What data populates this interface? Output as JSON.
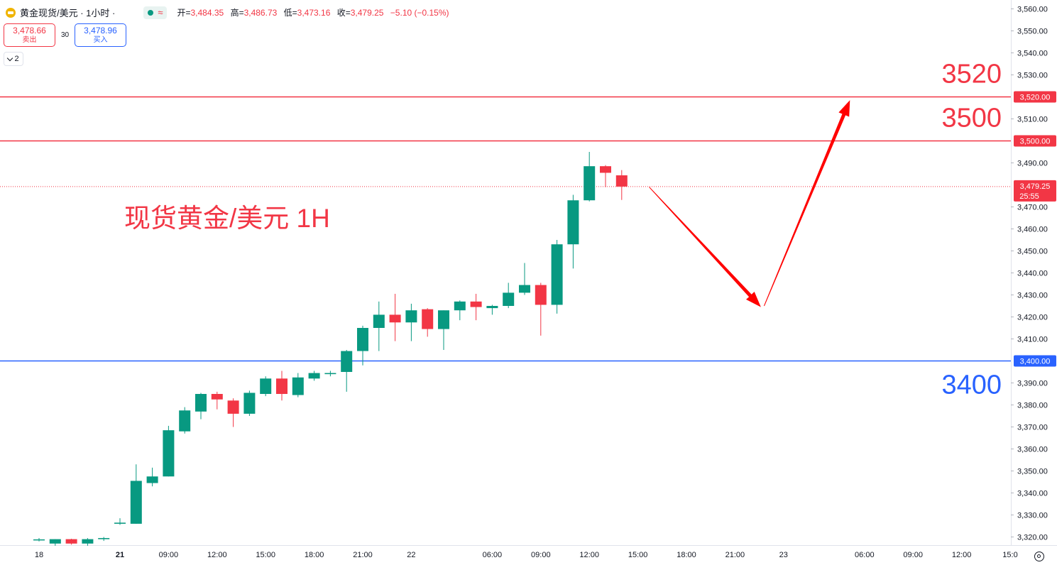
{
  "header": {
    "symbol_title": "黄金现货/美元 · 1小时 ·",
    "wave_glyph": "≈",
    "ohlc": [
      {
        "key": "开=",
        "value": "3,484.35"
      },
      {
        "key": "高=",
        "value": "3,486.73"
      },
      {
        "key": "低=",
        "value": "3,473.16"
      },
      {
        "key": "收=",
        "value": "3,479.25"
      }
    ],
    "change": "−5.10 (−0.15%)"
  },
  "trade": {
    "sell_price": "3,478.66",
    "sell_label": "卖出",
    "spread": "30",
    "buy_price": "3,478.96",
    "buy_label": "买入"
  },
  "indicator_toggle": {
    "count": "2"
  },
  "colors": {
    "up": "#089981",
    "down": "#f23645",
    "resistance": "#f23645",
    "support": "#2962ff",
    "arrow": "#ff0000",
    "annotation_text": "#f23645"
  },
  "chart_data": {
    "type": "candlestick",
    "annotation": "现货黄金/美元 1H",
    "ylim": [
      3314,
      3564
    ],
    "y_ticks": [
      "3,560.00",
      "3,550.00",
      "3,540.00",
      "3,530.00",
      "3,510.00",
      "3,490.00",
      "3,470.00",
      "3,460.00",
      "3,450.00",
      "3,440.00",
      "3,430.00",
      "3,420.00",
      "3,410.00",
      "3,390.00",
      "3,380.00",
      "3,370.00",
      "3,360.00",
      "3,350.00",
      "3,340.00",
      "3,330.00",
      "3,320.00"
    ],
    "x_labels": [
      {
        "label": "18",
        "index": -1,
        "bold": false
      },
      {
        "label": "21",
        "index": 4,
        "bold": true
      },
      {
        "label": "09:00",
        "index": 7,
        "bold": false
      },
      {
        "label": "12:00",
        "index": 10,
        "bold": false
      },
      {
        "label": "15:00",
        "index": 13,
        "bold": false
      },
      {
        "label": "18:00",
        "index": 16,
        "bold": false
      },
      {
        "label": "21:00",
        "index": 19,
        "bold": false
      },
      {
        "label": "22",
        "index": 22,
        "bold": false
      },
      {
        "label": "06:00",
        "index": 27,
        "bold": false
      },
      {
        "label": "09:00",
        "index": 30,
        "bold": false
      },
      {
        "label": "12:00",
        "index": 33,
        "bold": false
      },
      {
        "label": "15:00",
        "index": 36,
        "bold": false
      },
      {
        "label": "18:00",
        "index": 39,
        "bold": false
      },
      {
        "label": "21:00",
        "index": 42,
        "bold": false
      },
      {
        "label": "23",
        "index": 45,
        "bold": false
      },
      {
        "label": "06:00",
        "index": 50,
        "bold": false
      },
      {
        "label": "09:00",
        "index": 53,
        "bold": false
      },
      {
        "label": "12:00",
        "index": 56,
        "bold": false
      },
      {
        "label": "15:0",
        "index": 59,
        "bold": false
      }
    ],
    "candles": [
      {
        "i": -1,
        "o": 3318.8,
        "h": 3319.5,
        "l": 3318.0,
        "c": 3318.9
      },
      {
        "i": 0,
        "o": 3317.0,
        "h": 3319.0,
        "l": 3316.0,
        "c": 3319.0
      },
      {
        "i": 1,
        "o": 3319.0,
        "h": 3319.2,
        "l": 3316.5,
        "c": 3317.0
      },
      {
        "i": 2,
        "o": 3317.0,
        "h": 3319.5,
        "l": 3316.0,
        "c": 3319.0
      },
      {
        "i": 3,
        "o": 3319.0,
        "h": 3320.0,
        "l": 3318.2,
        "c": 3319.5
      },
      {
        "i": 4,
        "o": 3326.0,
        "h": 3328.5,
        "l": 3325.5,
        "c": 3326.5
      },
      {
        "i": 5,
        "o": 3326.0,
        "h": 3353.0,
        "l": 3326.0,
        "c": 3345.5
      },
      {
        "i": 6,
        "o": 3344.5,
        "h": 3351.5,
        "l": 3343.0,
        "c": 3347.5
      },
      {
        "i": 7,
        "o": 3347.5,
        "h": 3370.5,
        "l": 3347.5,
        "c": 3368.5
      },
      {
        "i": 8,
        "o": 3368.0,
        "h": 3379.0,
        "l": 3367.0,
        "c": 3377.5
      },
      {
        "i": 9,
        "o": 3377.0,
        "h": 3385.5,
        "l": 3373.5,
        "c": 3385.0
      },
      {
        "i": 10,
        "o": 3385.0,
        "h": 3386.0,
        "l": 3378.0,
        "c": 3382.5
      },
      {
        "i": 11,
        "o": 3382.0,
        "h": 3383.0,
        "l": 3370.0,
        "c": 3376.0
      },
      {
        "i": 12,
        "o": 3376.0,
        "h": 3386.5,
        "l": 3375.0,
        "c": 3385.5
      },
      {
        "i": 13,
        "o": 3385.0,
        "h": 3393.0,
        "l": 3384.0,
        "c": 3392.0
      },
      {
        "i": 14,
        "o": 3392.0,
        "h": 3395.5,
        "l": 3382.0,
        "c": 3385.0
      },
      {
        "i": 15,
        "o": 3384.5,
        "h": 3394.5,
        "l": 3383.5,
        "c": 3392.5
      },
      {
        "i": 16,
        "o": 3392.0,
        "h": 3395.5,
        "l": 3391.0,
        "c": 3394.5
      },
      {
        "i": 17,
        "o": 3394.0,
        "h": 3395.5,
        "l": 3393.0,
        "c": 3394.5
      },
      {
        "i": 18,
        "o": 3395.0,
        "h": 3405.0,
        "l": 3386.0,
        "c": 3404.5
      },
      {
        "i": 19,
        "o": 3404.5,
        "h": 3416.0,
        "l": 3398.0,
        "c": 3415.0
      },
      {
        "i": 20,
        "o": 3415.0,
        "h": 3427.0,
        "l": 3404.5,
        "c": 3421.0
      },
      {
        "i": 21,
        "o": 3421.0,
        "h": 3430.5,
        "l": 3409.0,
        "c": 3417.5
      },
      {
        "i": 22,
        "o": 3417.5,
        "h": 3426.0,
        "l": 3409.0,
        "c": 3423.0
      },
      {
        "i": 23,
        "o": 3423.5,
        "h": 3424.0,
        "l": 3411.0,
        "c": 3414.5
      },
      {
        "i": 24,
        "o": 3414.5,
        "h": 3423.0,
        "l": 3405.0,
        "c": 3423.0
      },
      {
        "i": 25,
        "o": 3423.0,
        "h": 3427.5,
        "l": 3418.5,
        "c": 3427.0
      },
      {
        "i": 26,
        "o": 3427.0,
        "h": 3430.5,
        "l": 3418.5,
        "c": 3424.5
      },
      {
        "i": 27,
        "o": 3424.0,
        "h": 3425.5,
        "l": 3421.0,
        "c": 3425.0
      },
      {
        "i": 28,
        "o": 3425.0,
        "h": 3435.5,
        "l": 3424.0,
        "c": 3431.0
      },
      {
        "i": 29,
        "o": 3431.0,
        "h": 3444.5,
        "l": 3430.0,
        "c": 3434.5
      },
      {
        "i": 30,
        "o": 3434.5,
        "h": 3435.5,
        "l": 3411.5,
        "c": 3425.5
      },
      {
        "i": 31,
        "o": 3425.5,
        "h": 3455.0,
        "l": 3421.5,
        "c": 3453.0
      },
      {
        "i": 32,
        "o": 3453.0,
        "h": 3475.5,
        "l": 3442.0,
        "c": 3473.0
      },
      {
        "i": 33,
        "o": 3473.0,
        "h": 3495.0,
        "l": 3472.5,
        "c": 3488.5
      },
      {
        "i": 34,
        "o": 3488.5,
        "h": 3489.0,
        "l": 3479.0,
        "c": 3485.5
      },
      {
        "i": 35,
        "o": 3484.35,
        "h": 3486.73,
        "l": 3473.16,
        "c": 3479.25
      }
    ],
    "horizontal_lines": [
      {
        "value": 3520,
        "label": "3520",
        "axis_label": "3,520.00",
        "color": "#f23645"
      },
      {
        "value": 3500,
        "label": "3500",
        "axis_label": "3,500.00",
        "color": "#f23645"
      },
      {
        "value": 3400,
        "label": "3400",
        "axis_label": "3,400.00",
        "color": "#2962ff"
      }
    ],
    "last_price": {
      "value": 3479.25,
      "label": "3,479.25",
      "countdown": "25:55"
    },
    "arrows": [
      {
        "from": {
          "i": 36.7,
          "y": 3479
        },
        "to": {
          "i": 43.6,
          "y": 3424.5
        }
      },
      {
        "from": {
          "i": 43.8,
          "y": 3425
        },
        "to": {
          "i": 49.1,
          "y": 3518.5
        }
      }
    ]
  }
}
